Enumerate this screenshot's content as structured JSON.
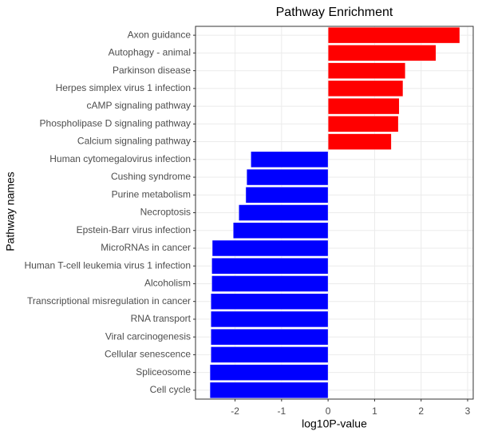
{
  "chart_data": {
    "type": "bar",
    "orientation": "horizontal",
    "title": "Pathway Enrichment",
    "x_label": "log10P-value",
    "y_label": "Pathway names",
    "categories": [
      "Axon guidance",
      "Autophagy - animal",
      "Parkinson disease",
      "Herpes simplex virus 1 infection",
      "cAMP signaling pathway",
      "Phospholipase D signaling pathway",
      "Calcium signaling pathway",
      "Human cytomegalovirus infection",
      "Cushing syndrome",
      "Purine metabolism",
      "Necroptosis",
      "Epstein-Barr virus infection",
      "MicroRNAs in cancer",
      "Human T-cell leukemia virus 1 infection",
      "Alcoholism",
      "Transcriptional misregulation in cancer",
      "RNA transport",
      "Viral carcinogenesis",
      "Cellular senescence",
      "Spliceosome",
      "Cell cycle"
    ],
    "values": [
      2.83,
      2.32,
      1.66,
      1.61,
      1.53,
      1.51,
      1.36,
      -1.66,
      -1.75,
      -1.77,
      -1.92,
      -2.04,
      -2.49,
      -2.5,
      -2.5,
      -2.52,
      -2.52,
      -2.52,
      -2.52,
      -2.54,
      -2.54
    ],
    "positive_color": "#ff0000",
    "negative_color": "#0000ff",
    "xlim": [
      -2.85,
      3.12
    ],
    "xticks": [
      -2,
      -1,
      0,
      1,
      2,
      3
    ],
    "grid": true
  }
}
